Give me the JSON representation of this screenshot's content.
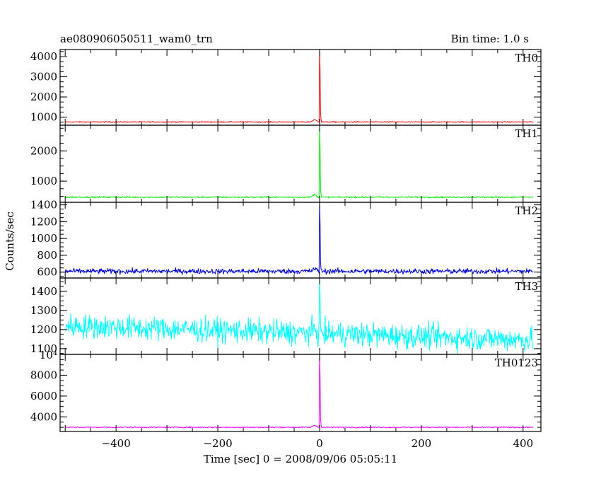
{
  "header": {
    "title": "ae080906050511_wam0_trn",
    "bin_time": "Bin time: 1.0 s"
  },
  "chart_data": {
    "type": "line",
    "xlabel": "Time [sec] 0 = 2008/09/06 05:05:11",
    "ylabel": "Counts/sec",
    "xlim": [
      -510,
      435
    ],
    "x_ticks": [
      -400,
      -200,
      0,
      200,
      400
    ],
    "x_tick_labels": [
      "−400",
      "−200",
      "0",
      "200",
      "400"
    ],
    "x_range": [
      -500,
      420
    ],
    "panels": [
      {
        "name": "TH0",
        "color": "#ff0000",
        "ylim": [
          600,
          4350
        ],
        "yticks": [
          1000,
          2000,
          3000,
          4000
        ],
        "ytick_labels": [
          "1000",
          "2000",
          "3000",
          "4000"
        ],
        "baseline": 760,
        "noise": 18,
        "peak": 4350,
        "precursor": 880
      },
      {
        "name": "TH1",
        "color": "#00ee00",
        "ylim": [
          300,
          2850
        ],
        "yticks": [
          1000,
          2000
        ],
        "ytick_labels": [
          "1000",
          "2000"
        ],
        "baseline": 470,
        "noise": 18,
        "peak": 2850,
        "precursor": 560
      },
      {
        "name": "TH2",
        "color": "#0000dd",
        "ylim": [
          530,
          1430
        ],
        "yticks": [
          600,
          800,
          1000,
          1200,
          1400
        ],
        "ytick_labels": [
          "600",
          "800",
          "1000",
          "1200",
          "1400"
        ],
        "baseline": 610,
        "noise": 22,
        "peak": 1430,
        "precursor": 640
      },
      {
        "name": "TH3",
        "color": "#00ffff",
        "ylim": [
          1070,
          1470
        ],
        "yticks": [
          1100,
          1200,
          1300,
          1400
        ],
        "ytick_labels": [
          "1100",
          "1200",
          "1300",
          "1400"
        ],
        "baseline": 1180,
        "noise": 45,
        "peak": 1470,
        "precursor": 1200
      },
      {
        "name": "TH0123",
        "color": "#ff00ff",
        "ylim": [
          2600,
          10000
        ],
        "yticks": [
          4000,
          6000,
          8000
        ],
        "ytick_labels": [
          "4000",
          "6000",
          "8000"
        ],
        "top_tick_label": "10⁴",
        "baseline": 3000,
        "noise": 40,
        "peak": 10000,
        "precursor": 3200
      }
    ]
  }
}
